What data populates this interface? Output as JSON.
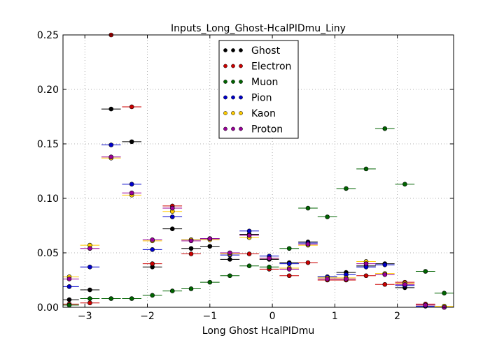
{
  "chart_data": {
    "type": "scatter",
    "title": "Inputs_Long_Ghost-HcalPIDmu_Liny",
    "xlabel": "Long Ghost HcalPIDmu",
    "ylabel": "",
    "xlim": [
      -3.35,
      2.9
    ],
    "ylim": [
      0.0,
      0.25
    ],
    "grid": true,
    "legend_position": "top-center",
    "xticks": [
      -3,
      -2,
      -1,
      0,
      1,
      2
    ],
    "yticks": [
      0.0,
      0.05,
      0.1,
      0.15,
      0.2,
      0.25
    ],
    "xtick_labels": [
      "−3",
      "−2",
      "−1",
      "0",
      "1",
      "2"
    ],
    "ytick_labels": [
      "0.00",
      "0.05",
      "0.10",
      "0.15",
      "0.20",
      "0.25"
    ],
    "bin_half_width": 0.155,
    "series": [
      {
        "name": "Ghost",
        "color": "#000000",
        "x": [
          -3.25,
          -2.92,
          -2.58,
          -2.25,
          -1.92,
          -1.6,
          -1.3,
          -1.0,
          -0.68,
          -0.37,
          -0.05,
          0.27,
          0.57,
          0.88,
          1.18,
          1.5,
          1.8,
          2.12,
          2.45,
          2.75
        ],
        "y": [
          0.007,
          0.016,
          0.182,
          0.152,
          0.037,
          0.072,
          0.054,
          0.056,
          0.044,
          0.067,
          0.044,
          0.041,
          0.06,
          0.028,
          0.032,
          0.038,
          0.04,
          0.018,
          0.002,
          0.001
        ]
      },
      {
        "name": "Electron",
        "color": "#cc0000",
        "x": [
          -3.25,
          -2.92,
          -2.58,
          -2.25,
          -1.92,
          -1.6,
          -1.3,
          -1.0,
          -0.68,
          -0.37,
          -0.05,
          0.27,
          0.57,
          0.88,
          1.18,
          1.5,
          1.8,
          2.12,
          2.45,
          2.75
        ],
        "y": [
          0.003,
          0.004,
          0.25,
          0.184,
          0.04,
          0.093,
          0.049,
          0.063,
          0.05,
          0.049,
          0.035,
          0.029,
          0.041,
          0.025,
          0.025,
          0.029,
          0.021,
          0.023,
          0.003,
          0.001
        ]
      },
      {
        "name": "Muon",
        "color": "#006400",
        "x": [
          -3.25,
          -2.92,
          -2.58,
          -2.25,
          -1.92,
          -1.6,
          -1.3,
          -1.0,
          -0.68,
          -0.37,
          -0.05,
          0.27,
          0.57,
          0.88,
          1.18,
          1.5,
          1.8,
          2.12,
          2.45,
          2.75
        ],
        "y": [
          0.002,
          0.008,
          0.008,
          0.008,
          0.011,
          0.015,
          0.017,
          0.023,
          0.029,
          0.038,
          0.037,
          0.054,
          0.091,
          0.083,
          0.109,
          0.127,
          0.164,
          0.113,
          0.033,
          0.013
        ]
      },
      {
        "name": "Pion",
        "color": "#0000cc",
        "x": [
          -3.25,
          -2.92,
          -2.58,
          -2.25,
          -1.92,
          -1.6,
          -1.3,
          -1.0,
          -0.68,
          -0.37,
          -0.05,
          0.27,
          0.57,
          0.88,
          1.18,
          1.5,
          1.8,
          2.12,
          2.45,
          2.75
        ],
        "y": [
          0.019,
          0.037,
          0.149,
          0.113,
          0.053,
          0.083,
          0.062,
          0.063,
          0.048,
          0.07,
          0.047,
          0.04,
          0.059,
          0.028,
          0.03,
          0.037,
          0.039,
          0.02,
          0.001,
          0.0
        ]
      },
      {
        "name": "Kaon",
        "color": "#ffcc00",
        "x": [
          -3.25,
          -2.92,
          -2.58,
          -2.25,
          -1.92,
          -1.6,
          -1.3,
          -1.0,
          -0.68,
          -0.37,
          -0.05,
          0.27,
          0.57,
          0.88,
          1.18,
          1.5,
          1.8,
          2.12,
          2.45,
          2.75
        ],
        "y": [
          0.028,
          0.057,
          0.137,
          0.103,
          0.061,
          0.088,
          0.062,
          0.062,
          0.049,
          0.064,
          0.045,
          0.036,
          0.057,
          0.027,
          0.027,
          0.042,
          0.031,
          0.022,
          0.002,
          0.001
        ]
      },
      {
        "name": "Proton",
        "color": "#990099",
        "x": [
          -3.25,
          -2.92,
          -2.58,
          -2.25,
          -1.92,
          -1.6,
          -1.3,
          -1.0,
          -0.68,
          -0.37,
          -0.05,
          0.27,
          0.57,
          0.88,
          1.18,
          1.5,
          1.8,
          2.12,
          2.45,
          2.75
        ],
        "y": [
          0.026,
          0.054,
          0.138,
          0.105,
          0.062,
          0.091,
          0.061,
          0.063,
          0.05,
          0.066,
          0.045,
          0.035,
          0.058,
          0.026,
          0.026,
          0.04,
          0.03,
          0.021,
          0.002,
          0.0
        ]
      }
    ]
  }
}
